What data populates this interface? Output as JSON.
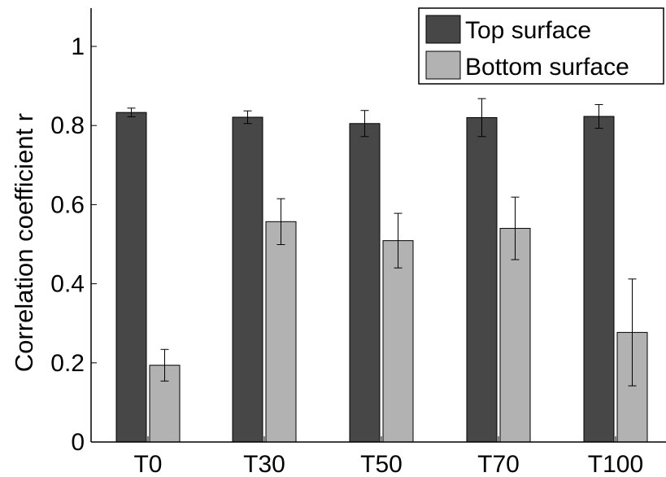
{
  "chart_data": {
    "type": "bar",
    "title": "",
    "xlabel": "",
    "ylabel": "Correlation coefficient r",
    "categories": [
      "T0",
      "T30",
      "T50",
      "T70",
      "T100"
    ],
    "ylim": [
      0,
      1.1
    ],
    "yticks": [
      "0",
      "0.2",
      "0.4",
      "0.6",
      "0.8",
      "1"
    ],
    "ytick_values": [
      0,
      0.2,
      0.4,
      0.6,
      0.8,
      1.0
    ],
    "grid": false,
    "legend_position": "top-right",
    "series": [
      {
        "name": "Top surface",
        "color": "#474747",
        "values": [
          0.833,
          0.821,
          0.805,
          0.82,
          0.823
        ],
        "errors": [
          0.011,
          0.016,
          0.033,
          0.048,
          0.03
        ]
      },
      {
        "name": "Bottom surface",
        "color": "#b2b2b2",
        "values": [
          0.194,
          0.557,
          0.509,
          0.54,
          0.277
        ],
        "errors": [
          0.04,
          0.058,
          0.069,
          0.079,
          0.135
        ]
      }
    ]
  }
}
